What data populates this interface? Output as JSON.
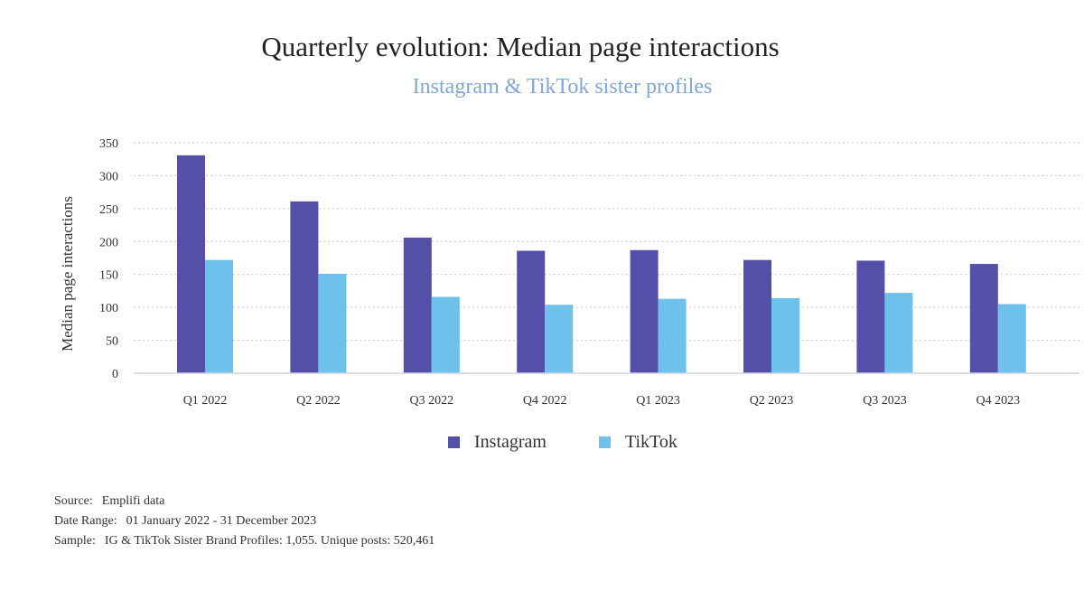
{
  "chart_data": {
    "type": "bar",
    "title": "Quarterly evolution: Median page interactions",
    "subtitle": "Instagram & TikTok sister profiles",
    "ylabel": "Median page interactions",
    "xlabel": "",
    "ylim": [
      0,
      350
    ],
    "yticks": [
      0,
      50,
      100,
      150,
      200,
      250,
      300,
      350
    ],
    "categories": [
      "Q1 2022",
      "Q2 2022",
      "Q3 2022",
      "Q4 2022",
      "Q1 2023",
      "Q2 2023",
      "Q3 2023",
      "Q4 2023"
    ],
    "series": [
      {
        "name": "Instagram",
        "color": "#5450a8",
        "values": [
          331,
          261,
          206,
          186,
          187,
          172,
          171,
          166
        ]
      },
      {
        "name": "TikTok",
        "color": "#6ec1ea",
        "values": [
          172,
          151,
          116,
          104,
          113,
          114,
          122,
          105
        ]
      }
    ],
    "grid": true,
    "legend_position": "bottom-center"
  },
  "footnotes": {
    "source_label": "Source:",
    "source_value": "Emplifi data",
    "date_label": "Date Range:",
    "date_value": "01 January 2022 - 31 December 2023",
    "sample_label": "Sample:",
    "sample_value": "IG & TikTok Sister Brand Profiles: 1,055. Unique posts: 520,461"
  }
}
